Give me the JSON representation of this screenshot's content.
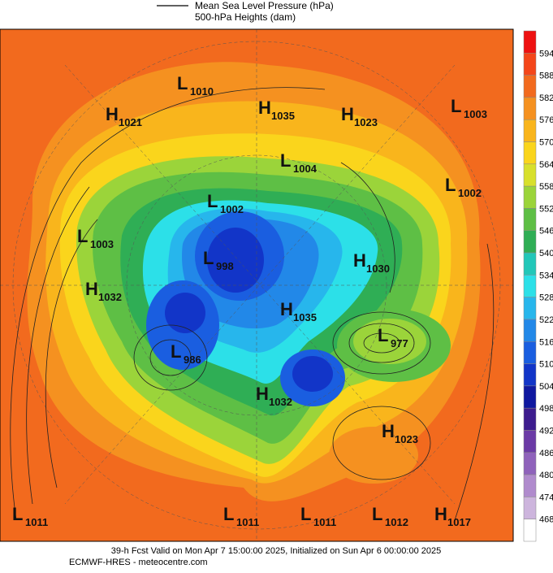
{
  "legend": {
    "line_1": "Mean Sea Level Pressure (hPa)",
    "line_2": "500-hPa Heights (dam)"
  },
  "colorbar": {
    "ticks": [
      594,
      588,
      582,
      576,
      570,
      564,
      558,
      552,
      546,
      540,
      534,
      528,
      522,
      516,
      510,
      504,
      498,
      492,
      486,
      480,
      474,
      468
    ],
    "colors": [
      "#ee1111",
      "#f4461a",
      "#f26a1e",
      "#f59120",
      "#f9b51c",
      "#fad51c",
      "#d8e02c",
      "#9bd43a",
      "#5ebf45",
      "#2fae55",
      "#22c7b9",
      "#2ce0e8",
      "#27b6ec",
      "#2288e8",
      "#1a5ee0",
      "#1235c8",
      "#0f18a0",
      "#3d1c8e",
      "#6b3aa6",
      "#8f62bb",
      "#b08bcd",
      "#cdb5dd",
      "#ffffff"
    ]
  },
  "centers": [
    {
      "type": "L",
      "value": "1010"
    },
    {
      "type": "H",
      "value": "1021"
    },
    {
      "type": "H",
      "value": "1035"
    },
    {
      "type": "H",
      "value": "1023"
    },
    {
      "type": "L",
      "value": "1003"
    },
    {
      "type": "L",
      "value": "1004"
    },
    {
      "type": "L",
      "value": "1002"
    },
    {
      "type": "L",
      "value": "1002"
    },
    {
      "type": "L",
      "value": "1003"
    },
    {
      "type": "L",
      "value": "998"
    },
    {
      "type": "H",
      "value": "1030"
    },
    {
      "type": "H",
      "value": "1032"
    },
    {
      "type": "H",
      "value": "1035"
    },
    {
      "type": "L",
      "value": "977"
    },
    {
      "type": "L",
      "value": "986"
    },
    {
      "type": "H",
      "value": "1032"
    },
    {
      "type": "H",
      "value": "1023"
    },
    {
      "type": "L",
      "value": "1011"
    },
    {
      "type": "L",
      "value": "1011"
    },
    {
      "type": "L",
      "value": "1011"
    },
    {
      "type": "L",
      "value": "1012"
    },
    {
      "type": "H",
      "value": "1017"
    }
  ],
  "footer": {
    "line_1": "39-h Fcst Valid on Mon Apr  7 15:00:00 2025, Initialized on Sun Apr  6 00:00:00 2025",
    "line_2": "ECMWF-HRES  - meteocentre.com"
  }
}
